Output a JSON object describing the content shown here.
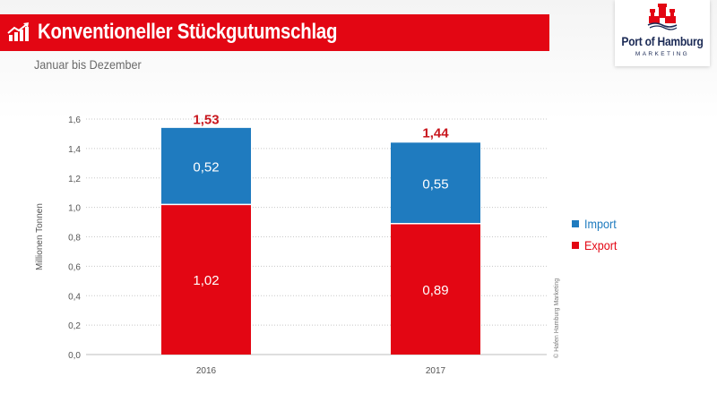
{
  "header": {
    "title": "Konventioneller Stückgutumschlag",
    "subtitle": "Januar bis Dezember"
  },
  "logo": {
    "name": "Port of Hamburg",
    "sub": "MARKETING"
  },
  "copyright": "© Hafen Hamburg Marketing",
  "colors": {
    "brand_red": "#e30613",
    "import_blue": "#1f7bbf",
    "export_red": "#e30613",
    "total_label": "#c8161d"
  },
  "legend": [
    {
      "label": "Import",
      "color": "#1f7bbf"
    },
    {
      "label": "Export",
      "color": "#e30613"
    }
  ],
  "chart_data": {
    "type": "bar",
    "stacked": true,
    "title": "Konventioneller Stückgutumschlag",
    "subtitle": "Januar bis Dezember",
    "xlabel": "",
    "ylabel": "Millionen Tonnen",
    "categories": [
      "2016",
      "2017"
    ],
    "series": [
      {
        "name": "Export",
        "values": [
          1.02,
          0.89
        ],
        "labels": [
          "1,02",
          "0,89"
        ],
        "color": "#e30613"
      },
      {
        "name": "Import",
        "values": [
          0.52,
          0.55
        ],
        "labels": [
          "0,52",
          "0,55"
        ],
        "color": "#1f7bbf"
      }
    ],
    "totals": [
      1.53,
      1.44
    ],
    "total_labels": [
      "1,53",
      "1,44"
    ],
    "ylim": [
      0,
      1.6
    ],
    "yticks": [
      0,
      0.2,
      0.4,
      0.6,
      0.8,
      1.0,
      1.2,
      1.4,
      1.6
    ],
    "ytick_labels": [
      "0,0",
      "0,2",
      "0,4",
      "0,6",
      "0,8",
      "1,0",
      "1,2",
      "1,4",
      "1,6"
    ],
    "grid": true,
    "legend_position": "right"
  }
}
